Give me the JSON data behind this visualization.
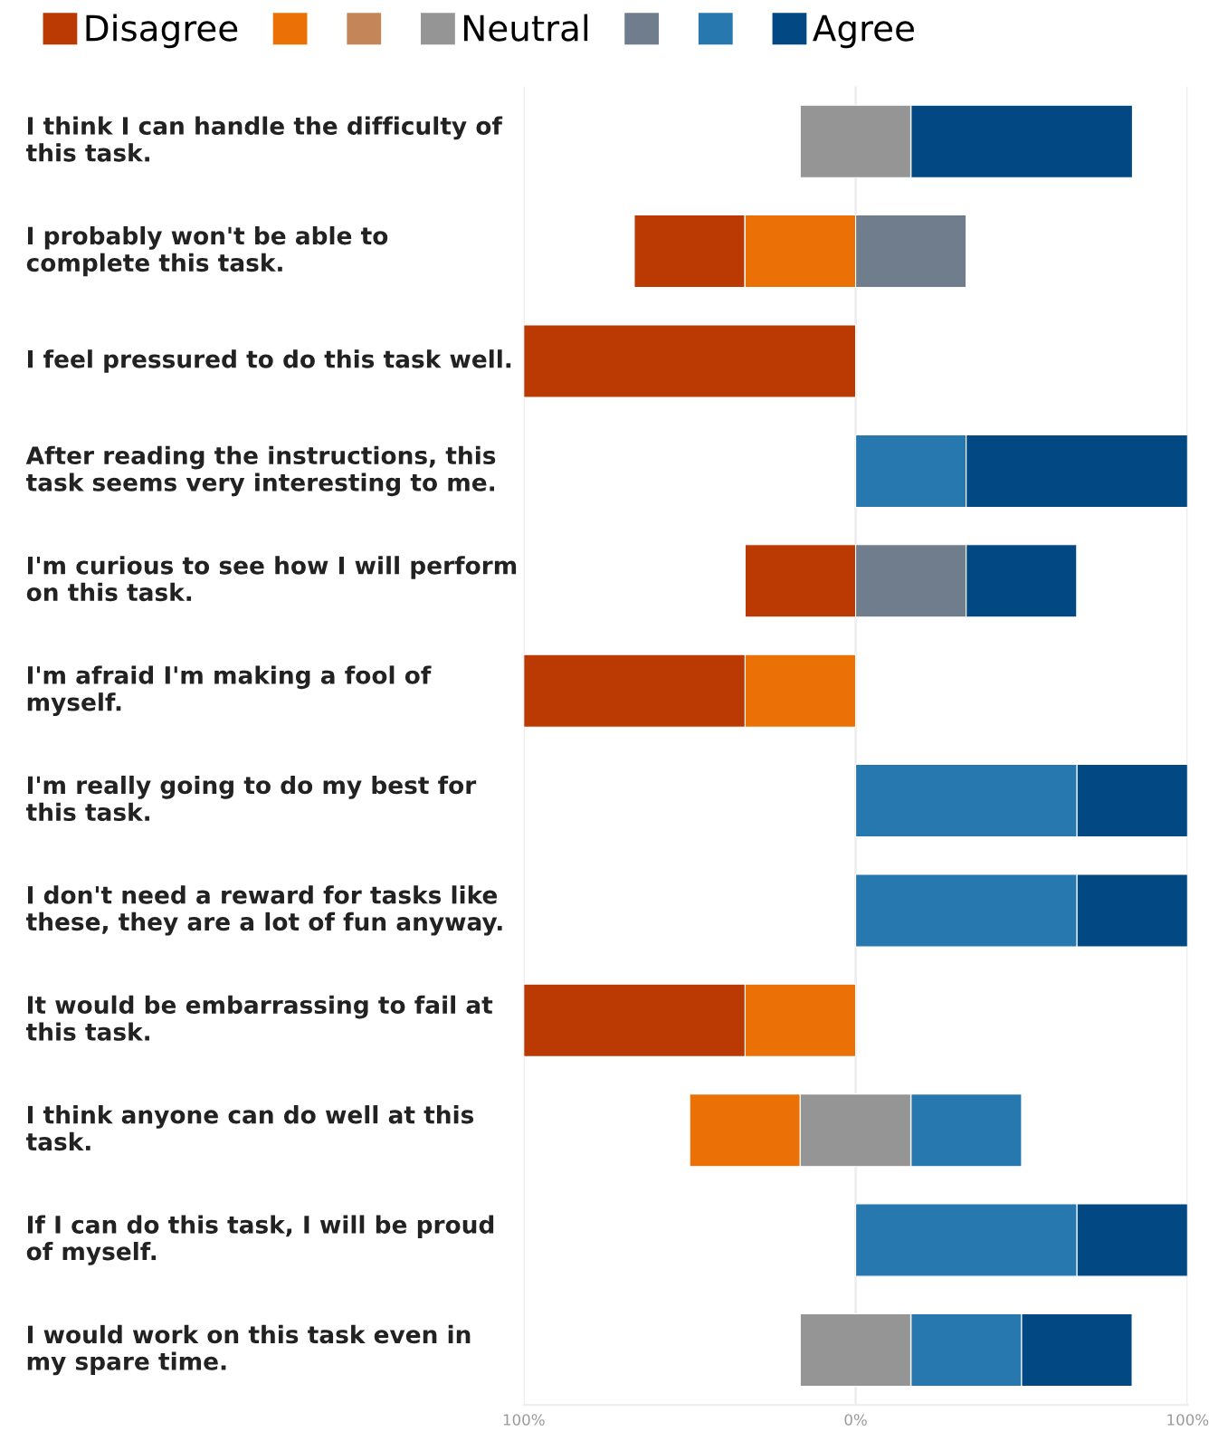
{
  "chart_data": {
    "type": "bar",
    "orientation": "horizontal",
    "categories": [
      "I think I can handle the difficulty of this task.",
      "I probably won't be able to complete this task.",
      "I feel pressured to do this task well.",
      "After reading the instructions, this task seems very interesting to me.",
      "I'm curious to see how I will perform on this task.",
      "I'm afraid I'm making a fool of myself.",
      "I'm really going to do my best for this task.",
      "I don't need a reward for tasks like these, they are a lot of fun anyway.",
      "It would be embarrassing to fail at this task.",
      "I think anyone can do well at this task.",
      "If I can do this task, I will be proud of myself.",
      "I would work on this task even in my spare time."
    ],
    "series": [
      {
        "name": "Disagree",
        "color": "#bb3a03",
        "base": [
          null,
          -66.7,
          -100,
          null,
          -33.3,
          -100,
          null,
          null,
          -100,
          null,
          null,
          null
        ],
        "values": [
          null,
          33.3,
          100,
          null,
          33.3,
          66.7,
          null,
          null,
          66.7,
          null,
          null,
          null
        ]
      },
      {
        "color": "#eb7006",
        "base": [
          null,
          -33.3,
          null,
          null,
          null,
          -33.3,
          null,
          null,
          -33.3,
          -50,
          null,
          null
        ],
        "values": [
          null,
          33.3,
          null,
          null,
          null,
          33.3,
          null,
          null,
          33.3,
          33.3,
          null,
          null
        ]
      },
      {
        "color": "#c48659",
        "base": [
          null,
          null,
          null,
          null,
          null,
          null,
          null,
          null,
          null,
          null,
          null,
          null
        ],
        "values": [
          null,
          null,
          null,
          null,
          null,
          null,
          null,
          null,
          null,
          null,
          null,
          null
        ]
      },
      {
        "name": "Neutral",
        "color": "#959595",
        "base": [
          -16.7,
          null,
          null,
          null,
          null,
          null,
          null,
          null,
          null,
          -16.7,
          null,
          -16.7
        ],
        "values": [
          33.3,
          null,
          null,
          null,
          null,
          null,
          null,
          null,
          null,
          33.3,
          null,
          33.3
        ]
      },
      {
        "color": "#6f7d8c",
        "base": [
          null,
          0,
          null,
          null,
          0,
          null,
          null,
          null,
          null,
          null,
          null,
          null
        ],
        "values": [
          null,
          33.3,
          null,
          null,
          33.3,
          null,
          null,
          null,
          null,
          null,
          null,
          null
        ]
      },
      {
        "color": "#2878b0",
        "base": [
          null,
          null,
          null,
          0,
          null,
          null,
          0,
          0,
          null,
          16.7,
          0,
          16.7
        ],
        "values": [
          null,
          null,
          null,
          33.3,
          null,
          null,
          66.7,
          66.7,
          null,
          33.3,
          66.7,
          33.3
        ]
      },
      {
        "name": "Agree",
        "color": "#024883",
        "base": [
          16.7,
          null,
          null,
          33.3,
          33.3,
          null,
          66.7,
          66.7,
          null,
          null,
          66.7,
          50
        ],
        "values": [
          66.7,
          null,
          null,
          66.7,
          33.3,
          null,
          33.3,
          33.3,
          null,
          null,
          33.3,
          33.3
        ]
      }
    ],
    "xlim": [
      -100,
      100
    ],
    "xticks": [
      {
        "value": -100,
        "label": "100%"
      },
      {
        "value": 0,
        "label": "0%"
      },
      {
        "value": 100,
        "label": "100%"
      }
    ],
    "grid": "x",
    "legend": "top"
  }
}
